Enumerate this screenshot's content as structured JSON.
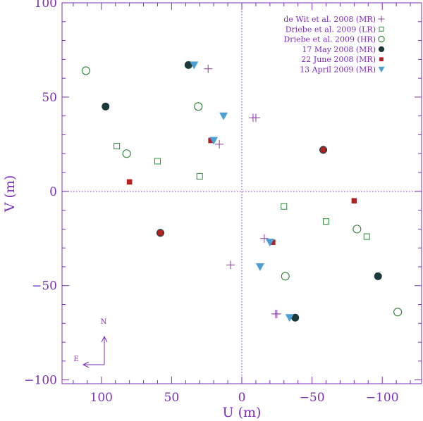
{
  "chart_data": {
    "type": "scatter",
    "xlabel": "U (m)",
    "ylabel": "V (m)",
    "xlim": [
      128,
      -128
    ],
    "ylim": [
      -102,
      100
    ],
    "x_ticks": [
      100,
      50,
      0,
      -50,
      -100
    ],
    "x_tick_labels": [
      "100",
      "50",
      "0",
      "−50",
      "−100"
    ],
    "y_ticks": [
      100,
      50,
      0,
      -50,
      -100
    ],
    "y_tick_labels": [
      "100",
      "50",
      "0",
      "−50",
      "−100"
    ],
    "zero_lines": true,
    "legend_position": "top-right",
    "compass": {
      "north": "N",
      "east": "E"
    },
    "colors": {
      "axis": "#7b2fbe",
      "dewit": "#8b3a9e",
      "lr": "#2e8b3e",
      "hr": "#2e7d32",
      "may": "#1c3a3a",
      "june": "#b22222",
      "april": "#4a9fd4"
    },
    "series": [
      {
        "name": "de Wit et al. 2008 (MR)",
        "marker": "plus",
        "x": [
          24,
          -10,
          16,
          -16,
          -24,
          8,
          -8,
          -25
        ],
        "y": [
          65,
          39,
          25,
          -25,
          -65,
          -39,
          39,
          -65
        ],
        "points_note": ""
      },
      {
        "name": "Driebe et al. 2009 (LR)",
        "marker": "open-square",
        "x": [
          89,
          60,
          30,
          -30,
          -60,
          -89
        ],
        "y": [
          24,
          16,
          8,
          -8,
          -16,
          -24
        ]
      },
      {
        "name": "Driebe et al. 2009 (HR)",
        "marker": "open-circle",
        "x": [
          111,
          82,
          31,
          -31,
          -82,
          -111
        ],
        "y": [
          64,
          20,
          45,
          -45,
          -20,
          -64
        ]
      },
      {
        "name": "17 May 2008 (MR)",
        "marker": "filled-circle",
        "x": [
          38,
          97,
          58,
          -58,
          -97,
          -38
        ],
        "y": [
          67,
          45,
          -22,
          22,
          -45,
          -67
        ]
      },
      {
        "name": "22 June 2008 (MR)",
        "marker": "filled-square",
        "x": [
          80,
          58,
          22,
          -58,
          -80,
          -22
        ],
        "y": [
          5,
          -22,
          27,
          22,
          -5,
          -27
        ]
      },
      {
        "name": "13 April 2009 (MR)",
        "marker": "filled-triangle-down",
        "x": [
          34,
          20,
          13,
          -13,
          -20,
          -34
        ],
        "y": [
          67,
          27,
          40,
          -40,
          -27,
          -67
        ]
      }
    ]
  }
}
